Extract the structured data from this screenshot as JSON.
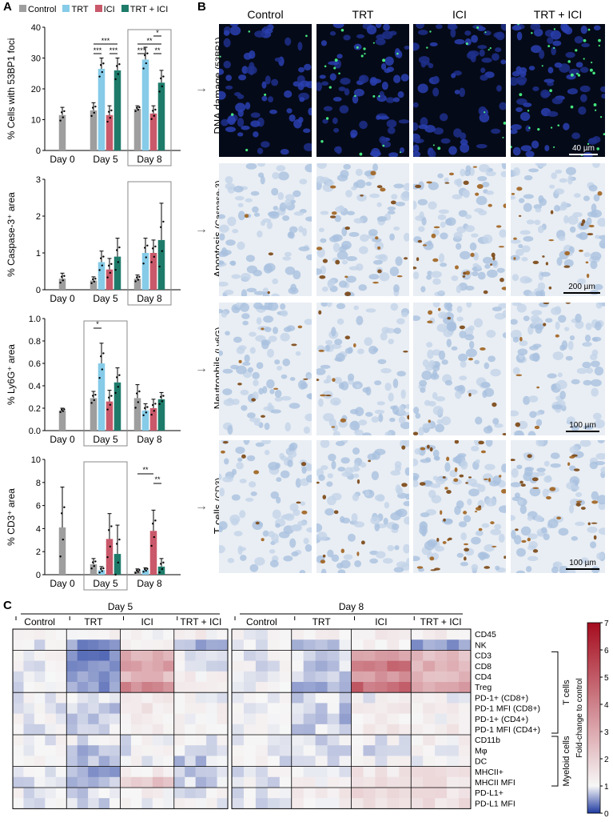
{
  "panel_labels": {
    "a": "A",
    "b": "B",
    "c": "C"
  },
  "legend": {
    "items": [
      {
        "label": "Control",
        "color": "#9e9e9e"
      },
      {
        "label": "TRT",
        "color": "#86cbe8"
      },
      {
        "label": "ICI",
        "color": "#c9596a"
      },
      {
        "label": "TRT + ICI",
        "color": "#1e7b6a"
      }
    ]
  },
  "arrow_glyph": "→",
  "chart_data": [
    {
      "type": "bar",
      "id": "foci",
      "ylabel": "% Cells with 53BP1 foci",
      "ylim": [
        0,
        40
      ],
      "yticks": [
        "0",
        "10",
        "20",
        "30",
        "40"
      ],
      "categories": [
        "Day 0",
        "Day 5",
        "Day 8"
      ],
      "series": [
        {
          "name": "Control",
          "values": [
            11.5,
            13,
            13.5
          ],
          "errors": [
            2.5,
            2.5,
            1
          ]
        },
        {
          "name": "TRT",
          "values": [
            null,
            26.5,
            29.5
          ],
          "errors": [
            null,
            3.5,
            4
          ]
        },
        {
          "name": "ICI",
          "values": [
            null,
            11.5,
            12
          ],
          "errors": [
            null,
            3,
            2.5
          ]
        },
        {
          "name": "TRT + ICI",
          "values": [
            null,
            26,
            22
          ],
          "errors": [
            null,
            4,
            4
          ]
        }
      ],
      "significance": [
        "***",
        "***",
        "***",
        "*",
        "**",
        "***",
        "**"
      ],
      "highlight": "Day 8"
    },
    {
      "type": "bar",
      "id": "caspase",
      "ylabel": "% Caspase-3⁺ area",
      "ylim": [
        0,
        3
      ],
      "yticks": [
        "0",
        "1",
        "2",
        "3"
      ],
      "categories": [
        "Day 0",
        "Day 5",
        "Day 8"
      ],
      "series": [
        {
          "name": "Control",
          "values": [
            0.3,
            0.25,
            0.3
          ],
          "errors": [
            0.15,
            0.1,
            0.1
          ]
        },
        {
          "name": "TRT",
          "values": [
            null,
            0.75,
            1.0
          ],
          "errors": [
            null,
            0.3,
            0.4
          ]
        },
        {
          "name": "ICI",
          "values": [
            null,
            0.55,
            1.0
          ],
          "errors": [
            null,
            0.3,
            0.35
          ]
        },
        {
          "name": "TRT + ICI",
          "values": [
            null,
            0.9,
            1.35
          ],
          "errors": [
            null,
            0.5,
            1.0
          ]
        }
      ],
      "significance": [],
      "highlight": "Day 8"
    },
    {
      "type": "bar",
      "id": "ly6g",
      "ylabel": "% Ly6G⁺ area",
      "ylim": [
        0,
        1.0
      ],
      "yticks": [
        "0.0",
        "0.2",
        "0.4",
        "0.6",
        "0.8",
        "1.0"
      ],
      "categories": [
        "Day 0",
        "Day 5",
        "Day 8"
      ],
      "series": [
        {
          "name": "Control",
          "values": [
            0.18,
            0.29,
            0.29
          ],
          "errors": [
            0.02,
            0.06,
            0.12
          ]
        },
        {
          "name": "TRT",
          "values": [
            null,
            0.6,
            0.18
          ],
          "errors": [
            null,
            0.18,
            0.06
          ]
        },
        {
          "name": "ICI",
          "values": [
            null,
            0.26,
            0.2
          ],
          "errors": [
            null,
            0.1,
            0.08
          ]
        },
        {
          "name": "TRT + ICI",
          "values": [
            null,
            0.43,
            0.28
          ],
          "errors": [
            null,
            0.13,
            0.06
          ]
        }
      ],
      "significance": [
        "*"
      ],
      "highlight": "Day 5"
    },
    {
      "type": "bar",
      "id": "cd3",
      "ylabel": "% CD3⁺ area",
      "ylim": [
        0,
        10
      ],
      "yticks": [
        "0",
        "2",
        "4",
        "6",
        "8",
        "10"
      ],
      "categories": [
        "Day 0",
        "Day 5",
        "Day 8"
      ],
      "series": [
        {
          "name": "Control",
          "values": [
            4.1,
            0.9,
            0.3
          ],
          "errors": [
            3.5,
            0.5,
            0.2
          ]
        },
        {
          "name": "TRT",
          "values": [
            null,
            0.4,
            0.4
          ],
          "errors": [
            null,
            0.3,
            0.2
          ]
        },
        {
          "name": "ICI",
          "values": [
            null,
            3.1,
            3.8
          ],
          "errors": [
            null,
            2.2,
            1.8
          ]
        },
        {
          "name": "TRT + ICI",
          "values": [
            null,
            1.8,
            0.7
          ],
          "errors": [
            null,
            2.5,
            0.7
          ]
        }
      ],
      "significance": [
        "**",
        "**"
      ],
      "highlight": "Day 5"
    },
    {
      "type": "heatmap",
      "id": "flow-heatmap",
      "colorbar_label": "Fold-change to control",
      "colorbar_ticks": [
        "0",
        "1",
        "2",
        "3",
        "4",
        "5",
        "6",
        "7"
      ],
      "clim": [
        0,
        7
      ],
      "days": [
        "Day 5",
        "Day 8"
      ],
      "groups": [
        "Control",
        "TRT",
        "ICI",
        "TRT + ICI"
      ],
      "rows": [
        "CD45",
        "NK",
        "CD3",
        "CD8",
        "CD4",
        "Treg",
        "PD-1+ (CD8+)",
        "PD-1 MFI (CD8+)",
        "PD-1+ (CD4+)",
        "PD-1 MFI (CD4+)",
        "CD11b",
        "Mφ",
        "DC",
        "MHCII+",
        "MHCII MFI",
        "PD-L1+",
        "PD-L1 MFI"
      ],
      "row_groups": [
        {
          "label": "T cells"
        },
        {
          "label": "Myeloid cells"
        }
      ],
      "cell_means": [
        [
          [
            1.0,
            1.1,
            1.2,
            1.2
          ],
          [
            1.0,
            1.1,
            1.3,
            1.2
          ]
        ],
        [
          [
            1.0,
            0.5,
            1.2,
            0.6
          ],
          [
            1.0,
            0.8,
            1.1,
            0.6
          ]
        ],
        [
          [
            1.0,
            0.4,
            2.8,
            1.0
          ],
          [
            1.0,
            0.8,
            3.5,
            2.4
          ]
        ],
        [
          [
            1.0,
            0.4,
            3.2,
            1.0
          ],
          [
            1.0,
            0.8,
            4.2,
            2.8
          ]
        ],
        [
          [
            1.0,
            0.5,
            2.6,
            1.2
          ],
          [
            1.0,
            0.7,
            3.3,
            2.5
          ]
        ],
        [
          [
            1.0,
            0.5,
            3.6,
            1.2
          ],
          [
            1.0,
            0.7,
            4.5,
            3.0
          ]
        ],
        [
          [
            1.0,
            0.9,
            1.3,
            1.1
          ],
          [
            1.0,
            0.9,
            1.1,
            1.1
          ]
        ],
        [
          [
            1.0,
            0.8,
            1.4,
            1.2
          ],
          [
            1.0,
            0.8,
            1.3,
            1.3
          ]
        ],
        [
          [
            1.0,
            0.8,
            1.2,
            1.1
          ],
          [
            1.0,
            0.7,
            1.2,
            1.2
          ]
        ],
        [
          [
            1.0,
            0.9,
            1.2,
            1.1
          ],
          [
            1.0,
            0.8,
            1.3,
            1.3
          ]
        ],
        [
          [
            1.0,
            1.0,
            1.0,
            1.0
          ],
          [
            1.0,
            0.9,
            1.0,
            1.2
          ]
        ],
        [
          [
            1.0,
            0.7,
            1.0,
            0.8
          ],
          [
            1.0,
            0.9,
            0.9,
            1.1
          ]
        ],
        [
          [
            1.0,
            0.7,
            1.1,
            0.8
          ],
          [
            1.0,
            0.9,
            1.0,
            1.1
          ]
        ],
        [
          [
            1.0,
            0.6,
            1.3,
            0.7
          ],
          [
            1.0,
            1.0,
            1.4,
            1.5
          ]
        ],
        [
          [
            1.0,
            0.7,
            2.2,
            0.8
          ],
          [
            1.0,
            1.1,
            1.7,
            1.6
          ]
        ],
        [
          [
            1.0,
            0.8,
            1.2,
            1.0
          ],
          [
            1.0,
            1.3,
            1.8,
            1.6
          ]
        ],
        [
          [
            1.0,
            0.8,
            1.1,
            1.0
          ],
          [
            1.0,
            1.2,
            1.7,
            1.6
          ]
        ]
      ]
    }
  ],
  "panel_b": {
    "columns": [
      "Control",
      "TRT",
      "ICI",
      "TRT + ICI"
    ],
    "rows": [
      {
        "label": "DNA damage",
        "marker": "(53BP1)",
        "scalebar": "40 µm"
      },
      {
        "label": "Apoptosis",
        "marker": "(Caspase-3)",
        "scalebar": "200 µm"
      },
      {
        "label": "Neutrophils",
        "marker": "(Ly6G)",
        "scalebar": "100 µm"
      },
      {
        "label": "T cells",
        "marker": "(CD3)",
        "scalebar": "100 µm"
      }
    ]
  }
}
